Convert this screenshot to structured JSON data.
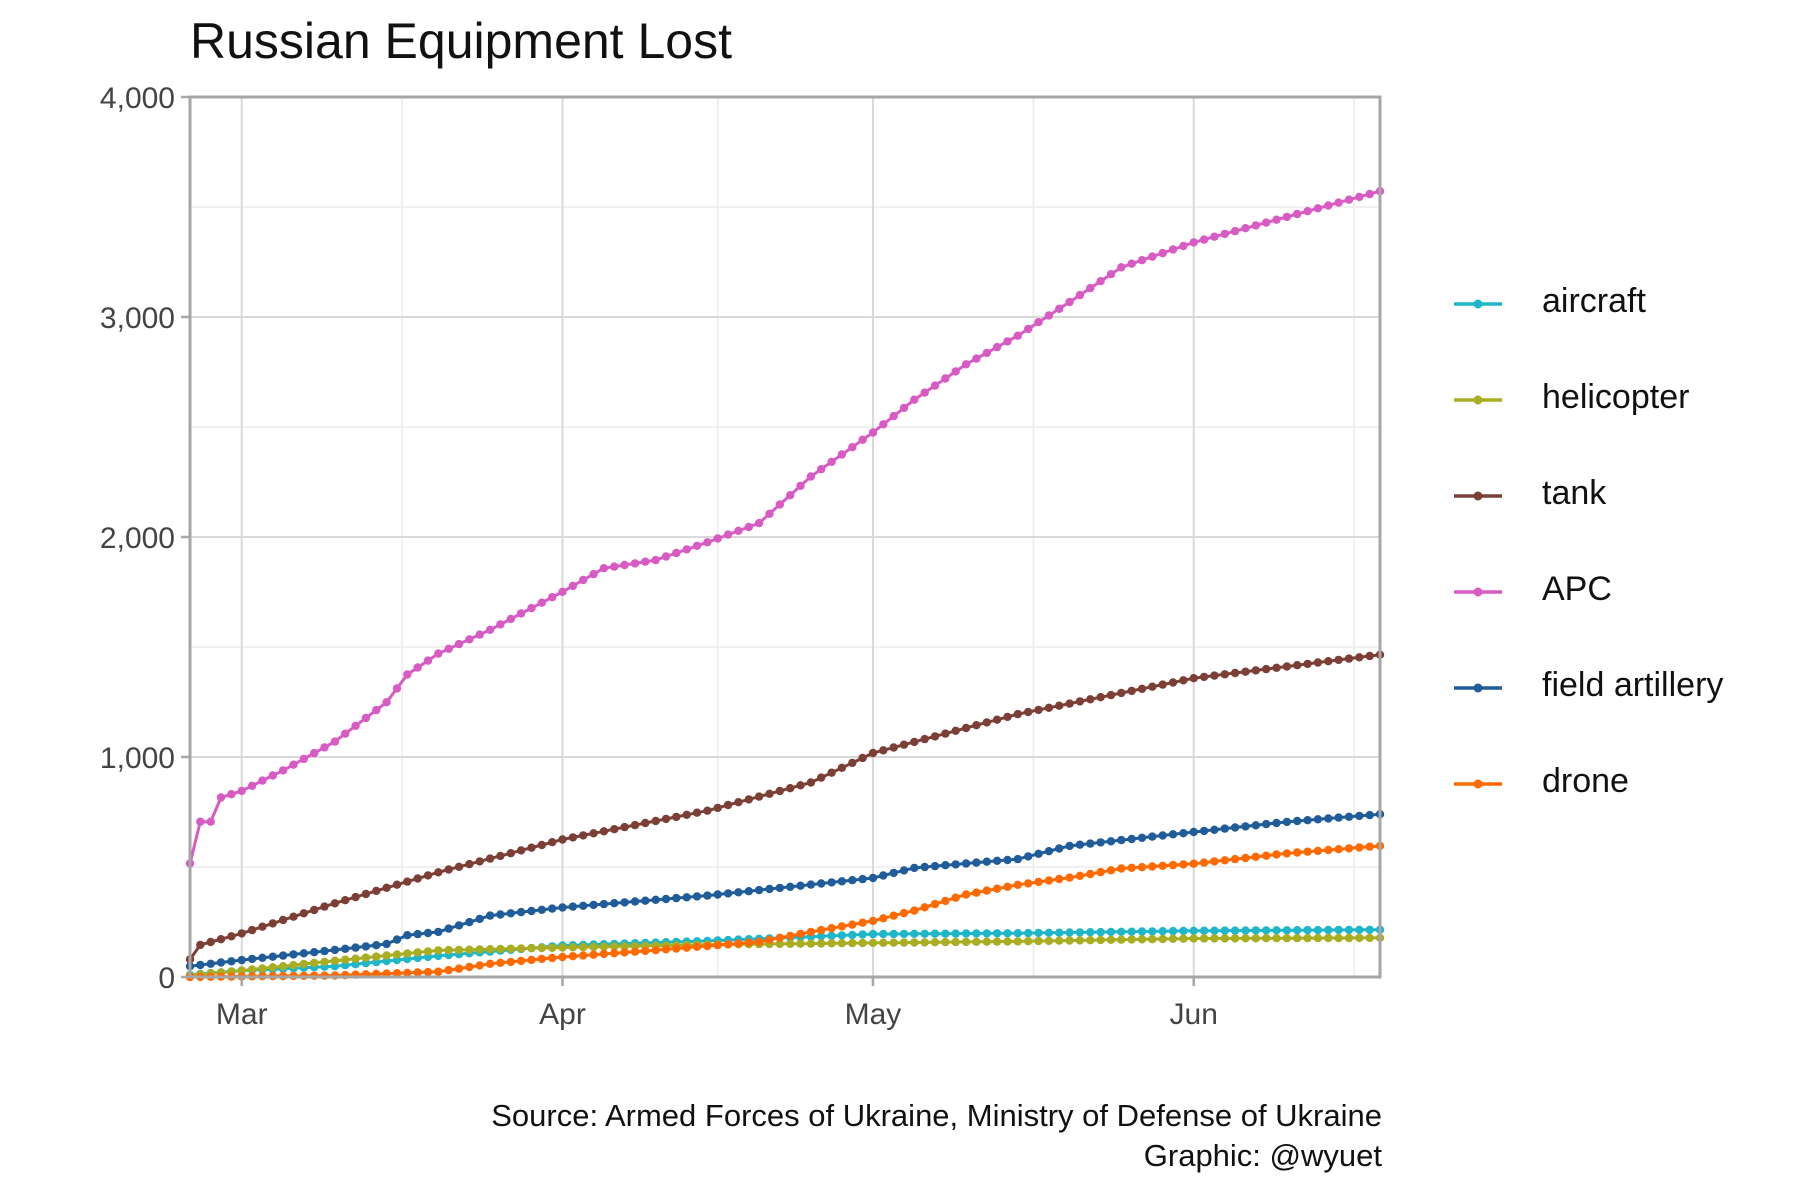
{
  "title": "Russian Equipment Lost",
  "caption": {
    "source": "Source: Armed Forces of Ukraine, Ministry of Defense of Ukraine",
    "graphic": "Graphic: @wyuet"
  },
  "chart_data": {
    "type": "line",
    "title": "Russian Equipment Lost",
    "xlabel": "",
    "ylabel": "",
    "x_range": [
      "2022-02-24",
      "2022-06-19"
    ],
    "ylim": [
      0,
      4000
    ],
    "y_ticks": [
      0,
      1000,
      2000,
      3000,
      4000
    ],
    "y_tick_labels": [
      "0",
      "1,000",
      "2,000",
      "3,000",
      "4,000"
    ],
    "x_ticks": [
      "2022-03-01",
      "2022-04-01",
      "2022-05-01",
      "2022-06-01"
    ],
    "x_tick_labels": [
      "Mar",
      "Apr",
      "May",
      "Jun"
    ],
    "grid": true,
    "legend_position": "right",
    "series": [
      {
        "name": "aircraft",
        "color": "#1fb6c9",
        "points": [
          [
            "2022-02-24",
            10
          ],
          [
            "2022-03-01",
            29
          ],
          [
            "2022-03-10",
            49
          ],
          [
            "2022-03-20",
            96
          ],
          [
            "2022-04-01",
            143
          ],
          [
            "2022-04-15",
            164
          ],
          [
            "2022-05-01",
            195
          ],
          [
            "2022-05-15",
            199
          ],
          [
            "2022-06-01",
            210
          ],
          [
            "2022-06-19",
            215
          ]
        ]
      },
      {
        "name": "helicopter",
        "color": "#a8ad22",
        "points": [
          [
            "2022-02-24",
            7
          ],
          [
            "2022-03-01",
            29
          ],
          [
            "2022-03-10",
            74
          ],
          [
            "2022-03-20",
            121
          ],
          [
            "2022-04-01",
            134
          ],
          [
            "2022-04-15",
            147
          ],
          [
            "2022-05-01",
            155
          ],
          [
            "2022-05-15",
            162
          ],
          [
            "2022-06-01",
            175
          ],
          [
            "2022-06-19",
            178
          ]
        ]
      },
      {
        "name": "tank",
        "color": "#7b3f35",
        "points": [
          [
            "2022-02-24",
            80
          ],
          [
            "2022-02-25",
            146
          ],
          [
            "2022-03-01",
            198
          ],
          [
            "2022-03-10",
            335
          ],
          [
            "2022-03-20",
            476
          ],
          [
            "2022-04-01",
            625
          ],
          [
            "2022-04-15",
            756
          ],
          [
            "2022-04-25",
            884
          ],
          [
            "2022-05-01",
            1018
          ],
          [
            "2022-05-15",
            1195
          ],
          [
            "2022-06-01",
            1358
          ],
          [
            "2022-06-19",
            1465
          ]
        ]
      },
      {
        "name": "APC",
        "color": "#d85ac3",
        "points": [
          [
            "2022-02-24",
            516
          ],
          [
            "2022-02-25",
            706
          ],
          [
            "2022-02-26",
            706
          ],
          [
            "2022-02-27",
            816
          ],
          [
            "2022-03-01",
            846
          ],
          [
            "2022-03-05",
            939
          ],
          [
            "2022-03-10",
            1070
          ],
          [
            "2022-03-15",
            1249
          ],
          [
            "2022-03-17",
            1375
          ],
          [
            "2022-03-20",
            1470
          ],
          [
            "2022-03-25",
            1578
          ],
          [
            "2022-04-01",
            1751
          ],
          [
            "2022-04-05",
            1858
          ],
          [
            "2022-04-10",
            1895
          ],
          [
            "2022-04-15",
            1976
          ],
          [
            "2022-04-20",
            2063
          ],
          [
            "2022-04-25",
            2275
          ],
          [
            "2022-05-01",
            2475
          ],
          [
            "2022-05-05",
            2624
          ],
          [
            "2022-05-10",
            2785
          ],
          [
            "2022-05-15",
            2915
          ],
          [
            "2022-05-20",
            3068
          ],
          [
            "2022-05-25",
            3226
          ],
          [
            "2022-06-01",
            3339
          ],
          [
            "2022-06-10",
            3455
          ],
          [
            "2022-06-19",
            3572
          ]
        ]
      },
      {
        "name": "field artillery",
        "color": "#1f5c99",
        "points": [
          [
            "2022-02-24",
            49
          ],
          [
            "2022-03-01",
            77
          ],
          [
            "2022-03-10",
            123
          ],
          [
            "2022-03-15",
            150
          ],
          [
            "2022-03-17",
            190
          ],
          [
            "2022-03-20",
            205
          ],
          [
            "2022-03-25",
            279
          ],
          [
            "2022-04-01",
            316
          ],
          [
            "2022-04-15",
            370
          ],
          [
            "2022-05-01",
            450
          ],
          [
            "2022-05-05",
            496
          ],
          [
            "2022-05-15",
            536
          ],
          [
            "2022-05-20",
            596
          ],
          [
            "2022-06-01",
            659
          ],
          [
            "2022-06-10",
            705
          ],
          [
            "2022-06-19",
            740
          ]
        ]
      },
      {
        "name": "drone",
        "color": "#ff6a00",
        "points": [
          [
            "2022-02-24",
            0
          ],
          [
            "2022-03-10",
            7
          ],
          [
            "2022-03-20",
            24
          ],
          [
            "2022-03-25",
            60
          ],
          [
            "2022-04-01",
            91
          ],
          [
            "2022-04-10",
            122
          ],
          [
            "2022-04-20",
            160
          ],
          [
            "2022-04-25",
            205
          ],
          [
            "2022-05-01",
            255
          ],
          [
            "2022-05-05",
            302
          ],
          [
            "2022-05-10",
            375
          ],
          [
            "2022-05-15",
            419
          ],
          [
            "2022-05-20",
            452
          ],
          [
            "2022-05-25",
            493
          ],
          [
            "2022-06-01",
            515
          ],
          [
            "2022-06-10",
            562
          ],
          [
            "2022-06-19",
            596
          ]
        ]
      }
    ]
  }
}
